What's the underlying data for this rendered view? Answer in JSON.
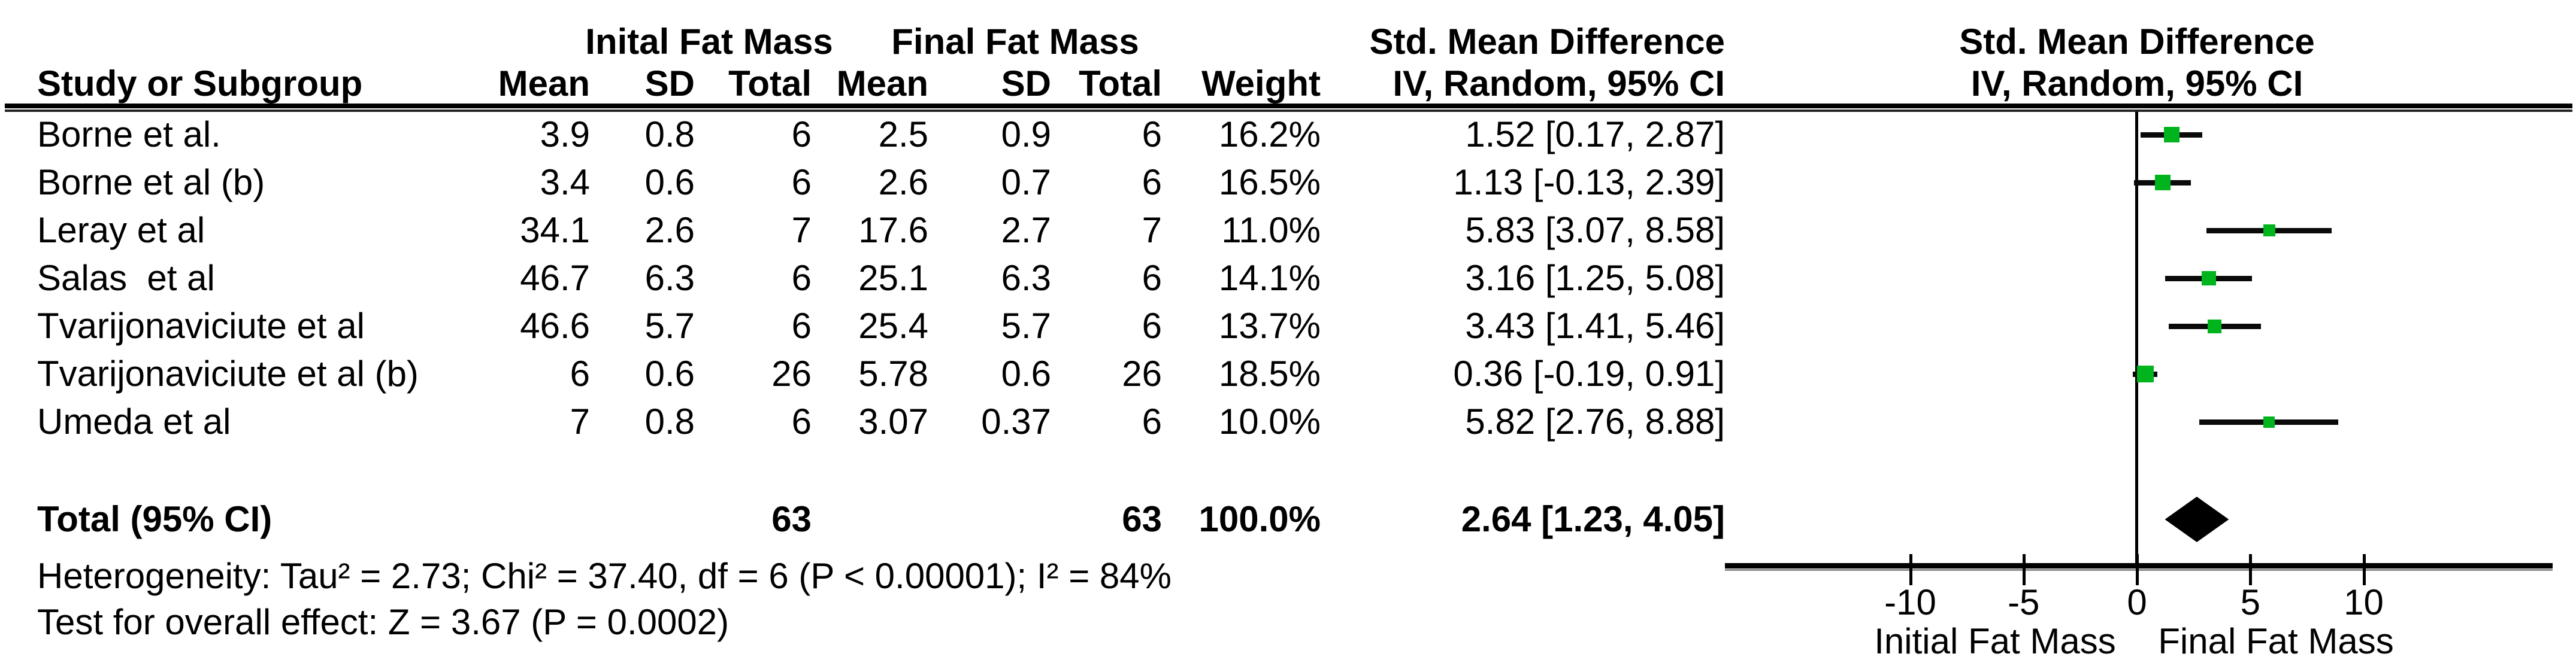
{
  "chart_data": {
    "type": "forest",
    "title_columns": {
      "group1": "Inital Fat Mass",
      "group2": "Final Fat Mass",
      "effect": "Std. Mean Difference",
      "method": "IV, Random, 95% CI"
    },
    "table_header": {
      "study": "Study or Subgroup",
      "mean": "Mean",
      "sd": "SD",
      "total": "Total",
      "weight": "Weight"
    },
    "plot_header": {
      "line1": "Std. Mean Difference",
      "line2": "IV, Random, 95% CI"
    },
    "studies": [
      {
        "label": "Borne et al.",
        "mean1": "3.9",
        "sd1": "0.8",
        "n1": "6",
        "mean2": "2.5",
        "sd2": "0.9",
        "n2": "6",
        "weight": "16.2%",
        "ci_text": "1.52 [0.17, 2.87]",
        "est": 1.52,
        "lo": 0.17,
        "hi": 2.87
      },
      {
        "label": "Borne et al (b)",
        "mean1": "3.4",
        "sd1": "0.6",
        "n1": "6",
        "mean2": "2.6",
        "sd2": "0.7",
        "n2": "6",
        "weight": "16.5%",
        "ci_text": "1.13 [-0.13, 2.39]",
        "est": 1.13,
        "lo": -0.13,
        "hi": 2.39
      },
      {
        "label": "Leray et al",
        "mean1": "34.1",
        "sd1": "2.6",
        "n1": "7",
        "mean2": "17.6",
        "sd2": "2.7",
        "n2": "7",
        "weight": "11.0%",
        "ci_text": "5.83 [3.07, 8.58]",
        "est": 5.83,
        "lo": 3.07,
        "hi": 8.58
      },
      {
        "label": "Salas  et al",
        "mean1": "46.7",
        "sd1": "6.3",
        "n1": "6",
        "mean2": "25.1",
        "sd2": "6.3",
        "n2": "6",
        "weight": "14.1%",
        "ci_text": "3.16 [1.25, 5.08]",
        "est": 3.16,
        "lo": 1.25,
        "hi": 5.08
      },
      {
        "label": "Tvarijonaviciute et al",
        "mean1": "46.6",
        "sd1": "5.7",
        "n1": "6",
        "mean2": "25.4",
        "sd2": "5.7",
        "n2": "6",
        "weight": "13.7%",
        "ci_text": "3.43 [1.41, 5.46]",
        "est": 3.43,
        "lo": 1.41,
        "hi": 5.46
      },
      {
        "label": "Tvarijonaviciute et al (b)",
        "mean1": "6",
        "sd1": "0.6",
        "n1": "26",
        "mean2": "5.78",
        "sd2": "0.6",
        "n2": "26",
        "weight": "18.5%",
        "ci_text": "0.36 [-0.19, 0.91]",
        "est": 0.36,
        "lo": -0.19,
        "hi": 0.91
      },
      {
        "label": "Umeda et al",
        "mean1": "7",
        "sd1": "0.8",
        "n1": "6",
        "mean2": "3.07",
        "sd2": "0.37",
        "n2": "6",
        "weight": "10.0%",
        "ci_text": "5.82 [2.76, 8.88]",
        "est": 5.82,
        "lo": 2.76,
        "hi": 8.88
      }
    ],
    "total": {
      "label": "Total (95% CI)",
      "n1": "63",
      "n2": "63",
      "weight": "100.0%",
      "ci_text": "2.64 [1.23, 4.05]",
      "est": 2.64,
      "lo": 1.23,
      "hi": 4.05
    },
    "footnotes": {
      "heterogeneity": "Heterogeneity: Tau² = 2.73; Chi² = 37.40, df = 6 (P < 0.00001); I² = 84%",
      "overall_effect": "Test for overall effect: Z = 3.67 (P = 0.0002)"
    },
    "axis": {
      "ticks": [
        -10,
        -5,
        0,
        5,
        10
      ],
      "range": [
        -18,
        18
      ],
      "left_label": "Initial Fat Mass",
      "right_label": "Final Fat Mass"
    },
    "colors": {
      "marker_green": "#00b41e",
      "line_black": "#0a0a0a"
    }
  }
}
